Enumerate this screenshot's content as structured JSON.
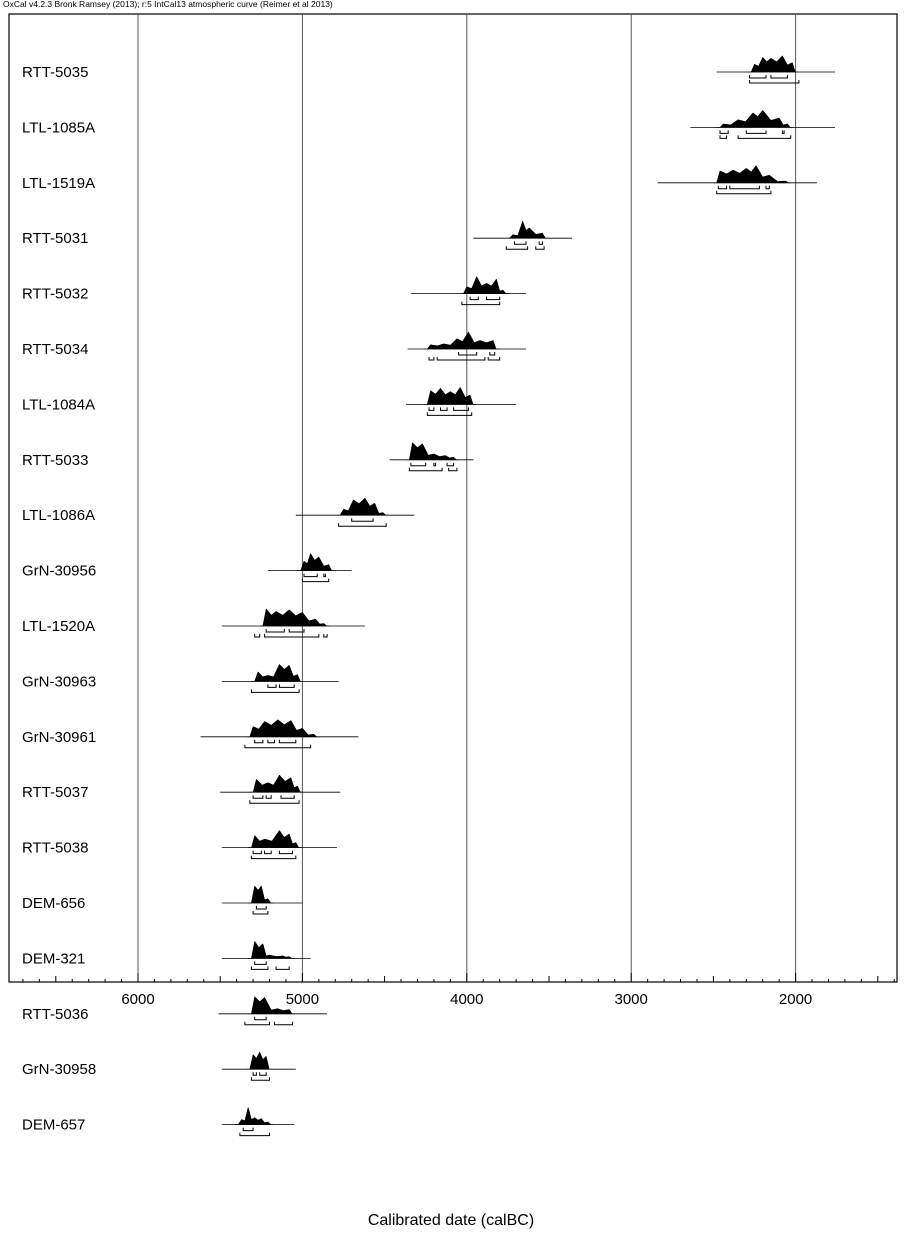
{
  "header_note": "OxCal v4.2.3 Bronk Ramsey (2013); r:5 IntCal13 atmospheric curve (Reimer et al 2013)",
  "chart_data": {
    "type": "calibrated-date-ranges",
    "xlabel": "Calibrated date (calBC)",
    "x_ticks": [
      6000,
      5000,
      4000,
      3000,
      2000
    ],
    "x_range": [
      6800,
      1400
    ],
    "x_reversed": true,
    "grid": "vertical",
    "samples": [
      {
        "name": "RTT-5035",
        "line": [
          2480,
          1760
        ],
        "peaks": [
          [
            2250,
            0.45
          ],
          [
            2200,
            0.85
          ],
          [
            2150,
            0.8
          ],
          [
            2080,
            0.95
          ],
          [
            2020,
            0.55
          ]
        ],
        "range68": [
          [
            2280,
            2180
          ],
          [
            2150,
            2050
          ]
        ],
        "range95": [
          [
            2280,
            1980
          ]
        ]
      },
      {
        "name": "LTL-1085A",
        "line": [
          2640,
          1760
        ],
        "peaks": [
          [
            2440,
            0.2
          ],
          [
            2350,
            0.45
          ],
          [
            2260,
            0.85
          ],
          [
            2200,
            1.0
          ],
          [
            2100,
            0.55
          ],
          [
            2050,
            0.2
          ]
        ],
        "range68": [
          [
            2460,
            2410
          ],
          [
            2300,
            2180
          ],
          [
            2080,
            2070
          ]
        ],
        "range95": [
          [
            2460,
            2420
          ],
          [
            2350,
            2030
          ]
        ]
      },
      {
        "name": "LTL-1519A",
        "line": [
          2840,
          1870
        ],
        "peaks": [
          [
            2460,
            0.7
          ],
          [
            2380,
            0.75
          ],
          [
            2300,
            0.85
          ],
          [
            2240,
            1.0
          ],
          [
            2160,
            0.45
          ],
          [
            2060,
            0.1
          ]
        ],
        "range68": [
          [
            2470,
            2420
          ],
          [
            2400,
            2220
          ],
          [
            2180,
            2160
          ]
        ],
        "range95": [
          [
            2480,
            2150
          ]
        ]
      },
      {
        "name": "RTT-5031",
        "line": [
          3960,
          3360
        ],
        "peaks": [
          [
            3720,
            0.2
          ],
          [
            3660,
            1.0
          ],
          [
            3620,
            0.6
          ],
          [
            3540,
            0.3
          ]
        ],
        "range68": [
          [
            3710,
            3640
          ],
          [
            3560,
            3540
          ]
        ],
        "range95": [
          [
            3760,
            3630
          ],
          [
            3580,
            3530
          ]
        ]
      },
      {
        "name": "RTT-5032",
        "line": [
          4340,
          3640
        ],
        "peaks": [
          [
            4000,
            0.4
          ],
          [
            3940,
            1.0
          ],
          [
            3880,
            0.6
          ],
          [
            3820,
            0.85
          ],
          [
            3780,
            0.2
          ]
        ],
        "range68": [
          [
            3980,
            3930
          ],
          [
            3880,
            3800
          ]
        ],
        "range95": [
          [
            4030,
            3800
          ]
        ]
      },
      {
        "name": "RTT-5034",
        "line": [
          4360,
          3640
        ],
        "peaks": [
          [
            4220,
            0.25
          ],
          [
            4140,
            0.3
          ],
          [
            4060,
            0.6
          ],
          [
            3990,
            1.0
          ],
          [
            3920,
            0.5
          ],
          [
            3840,
            0.5
          ]
        ],
        "range68": [
          [
            4050,
            3940
          ],
          [
            3860,
            3830
          ]
        ],
        "range95": [
          [
            4230,
            4200
          ],
          [
            4180,
            3890
          ],
          [
            3870,
            3800
          ]
        ]
      },
      {
        "name": "LTL-1084A",
        "line": [
          4370,
          3700
        ],
        "peaks": [
          [
            4220,
            0.8
          ],
          [
            4160,
            0.95
          ],
          [
            4100,
            0.75
          ],
          [
            4040,
            1.0
          ],
          [
            3980,
            0.55
          ]
        ],
        "range68": [
          [
            4230,
            4200
          ],
          [
            4160,
            4120
          ],
          [
            4080,
            3990
          ]
        ],
        "range95": [
          [
            4240,
            3970
          ]
        ]
      },
      {
        "name": "RTT-5033",
        "line": [
          4470,
          3960
        ],
        "peaks": [
          [
            4330,
            1.0
          ],
          [
            4270,
            0.95
          ],
          [
            4200,
            0.35
          ],
          [
            4130,
            0.25
          ],
          [
            4080,
            0.15
          ]
        ],
        "range68": [
          [
            4340,
            4250
          ],
          [
            4200,
            4190
          ],
          [
            4120,
            4080
          ]
        ],
        "range95": [
          [
            4350,
            4150
          ],
          [
            4110,
            4060
          ]
        ]
      },
      {
        "name": "LTL-1086A",
        "line": [
          5040,
          4320
        ],
        "peaks": [
          [
            4750,
            0.35
          ],
          [
            4690,
            0.9
          ],
          [
            4620,
            1.0
          ],
          [
            4560,
            0.7
          ],
          [
            4510,
            0.15
          ]
        ],
        "range68": [
          [
            4700,
            4570
          ]
        ],
        "range95": [
          [
            4780,
            4490
          ]
        ]
      },
      {
        "name": "GrN-30956",
        "line": [
          5210,
          4700
        ],
        "peaks": [
          [
            4990,
            0.55
          ],
          [
            4950,
            1.0
          ],
          [
            4900,
            0.8
          ],
          [
            4840,
            0.35
          ]
        ],
        "range68": [
          [
            4990,
            4910
          ],
          [
            4870,
            4860
          ]
        ],
        "range95": [
          [
            5000,
            4840
          ]
        ]
      },
      {
        "name": "LTL-1520A",
        "line": [
          5490,
          4620
        ],
        "peaks": [
          [
            5220,
            1.0
          ],
          [
            5160,
            0.85
          ],
          [
            5080,
            0.95
          ],
          [
            5000,
            0.8
          ],
          [
            4920,
            0.4
          ],
          [
            4870,
            0.15
          ]
        ],
        "range68": [
          [
            5220,
            5110
          ],
          [
            5080,
            4990
          ]
        ],
        "range95": [
          [
            5290,
            5260
          ],
          [
            5230,
            4900
          ],
          [
            4870,
            4850
          ]
        ]
      },
      {
        "name": "GrN-30963",
        "line": [
          5490,
          4780
        ],
        "peaks": [
          [
            5270,
            0.55
          ],
          [
            5210,
            0.35
          ],
          [
            5140,
            1.0
          ],
          [
            5080,
            0.95
          ],
          [
            5030,
            0.4
          ]
        ],
        "range68": [
          [
            5210,
            5160
          ],
          [
            5140,
            5050
          ]
        ],
        "range95": [
          [
            5310,
            5020
          ]
        ]
      },
      {
        "name": "GrN-30961",
        "line": [
          5620,
          4660
        ],
        "peaks": [
          [
            5300,
            0.6
          ],
          [
            5230,
            0.9
          ],
          [
            5150,
            1.0
          ],
          [
            5070,
            0.95
          ],
          [
            5000,
            0.5
          ],
          [
            4930,
            0.15
          ]
        ],
        "range68": [
          [
            5290,
            5240
          ],
          [
            5210,
            5170
          ],
          [
            5140,
            5040
          ]
        ],
        "range95": [
          [
            5350,
            4950
          ]
        ]
      },
      {
        "name": "RTT-5037",
        "line": [
          5500,
          4770
        ],
        "peaks": [
          [
            5280,
            0.75
          ],
          [
            5210,
            0.55
          ],
          [
            5140,
            1.0
          ],
          [
            5070,
            0.85
          ],
          [
            5030,
            0.35
          ]
        ],
        "range68": [
          [
            5300,
            5240
          ],
          [
            5220,
            5190
          ],
          [
            5130,
            5050
          ]
        ],
        "range95": [
          [
            5320,
            5020
          ]
        ]
      },
      {
        "name": "RTT-5038",
        "line": [
          5490,
          4790
        ],
        "peaks": [
          [
            5290,
            0.7
          ],
          [
            5230,
            0.5
          ],
          [
            5140,
            1.0
          ],
          [
            5080,
            0.8
          ],
          [
            5040,
            0.3
          ]
        ],
        "range68": [
          [
            5300,
            5250
          ],
          [
            5230,
            5190
          ],
          [
            5140,
            5060
          ]
        ],
        "range95": [
          [
            5310,
            5040
          ]
        ]
      },
      {
        "name": "DEM-656",
        "line": [
          5490,
          5000
        ],
        "peaks": [
          [
            5290,
            1.0
          ],
          [
            5250,
            1.0
          ],
          [
            5210,
            0.25
          ]
        ],
        "range68": [
          [
            5280,
            5220
          ]
        ],
        "range95": [
          [
            5300,
            5210
          ]
        ]
      },
      {
        "name": "DEM-321",
        "line": [
          5490,
          4950
        ],
        "peaks": [
          [
            5290,
            1.0
          ],
          [
            5240,
            0.85
          ],
          [
            5200,
            0.2
          ],
          [
            5120,
            0.15
          ],
          [
            5080,
            0.1
          ]
        ],
        "range68": [
          [
            5290,
            5220
          ]
        ],
        "range95": [
          [
            5310,
            5210
          ],
          [
            5160,
            5080
          ]
        ]
      },
      {
        "name": "RTT-5036",
        "line": [
          5510,
          4850
        ],
        "peaks": [
          [
            5290,
            1.0
          ],
          [
            5230,
            0.95
          ],
          [
            5150,
            0.3
          ],
          [
            5080,
            0.25
          ]
        ],
        "range68": [
          [
            5290,
            5220
          ]
        ],
        "range95": [
          [
            5350,
            5200
          ],
          [
            5170,
            5060
          ]
        ]
      },
      {
        "name": "GrN-30958",
        "line": [
          5490,
          5040
        ],
        "peaks": [
          [
            5300,
            0.85
          ],
          [
            5260,
            1.0
          ],
          [
            5220,
            0.75
          ]
        ],
        "range68": [
          [
            5300,
            5280
          ],
          [
            5260,
            5220
          ]
        ],
        "range95": [
          [
            5310,
            5200
          ]
        ]
      },
      {
        "name": "DEM-657",
        "line": [
          5490,
          5050
        ],
        "peaks": [
          [
            5370,
            0.3
          ],
          [
            5330,
            1.0
          ],
          [
            5290,
            0.4
          ],
          [
            5250,
            0.35
          ],
          [
            5210,
            0.15
          ]
        ],
        "range68": [
          [
            5360,
            5300
          ]
        ],
        "range95": [
          [
            5380,
            5200
          ]
        ]
      }
    ]
  }
}
